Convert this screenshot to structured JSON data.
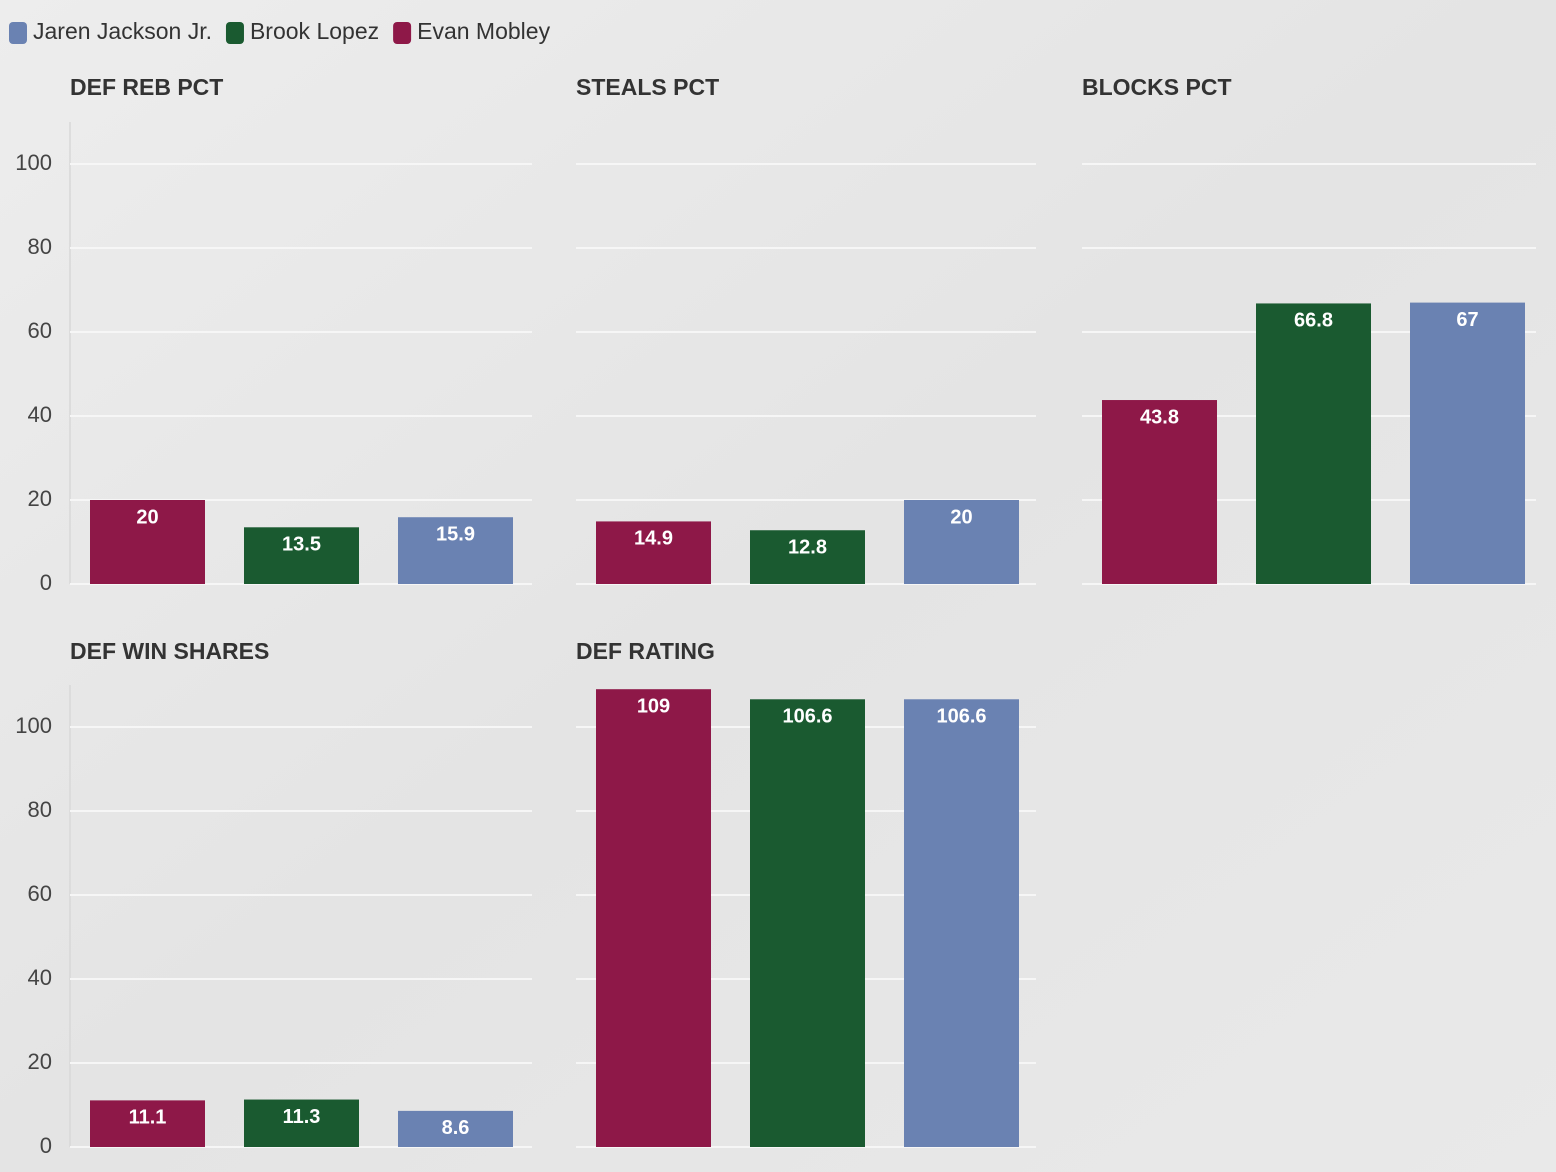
{
  "chart_data": [
    {
      "type": "bar",
      "title": "DEF REB PCT",
      "ylim": [
        0,
        110
      ],
      "yticks": [
        0,
        20,
        40,
        60,
        80,
        100
      ],
      "ytick_labels": true,
      "grid": true,
      "series": [
        {
          "name": "Evan Mobley",
          "color": "#8e1848",
          "values": [
            20
          ]
        },
        {
          "name": "Brook Lopez",
          "color": "#1a5a30",
          "values": [
            13.5
          ]
        },
        {
          "name": "Jaren Jackson Jr.",
          "color": "#6a82b2",
          "values": [
            15.9
          ]
        }
      ]
    },
    {
      "type": "bar",
      "title": "STEALS PCT",
      "ylim": [
        0,
        110
      ],
      "yticks": [
        0,
        20,
        40,
        60,
        80,
        100
      ],
      "ytick_labels": false,
      "grid": true,
      "series": [
        {
          "name": "Evan Mobley",
          "color": "#8e1848",
          "values": [
            14.9
          ]
        },
        {
          "name": "Brook Lopez",
          "color": "#1a5a30",
          "values": [
            12.8
          ]
        },
        {
          "name": "Jaren Jackson Jr.",
          "color": "#6a82b2",
          "values": [
            20
          ]
        }
      ]
    },
    {
      "type": "bar",
      "title": "BLOCKS PCT",
      "ylim": [
        0,
        110
      ],
      "yticks": [
        0,
        20,
        40,
        60,
        80,
        100
      ],
      "ytick_labels": false,
      "grid": true,
      "series": [
        {
          "name": "Evan Mobley",
          "color": "#8e1848",
          "values": [
            43.8
          ]
        },
        {
          "name": "Brook Lopez",
          "color": "#1a5a30",
          "values": [
            66.8
          ]
        },
        {
          "name": "Jaren Jackson Jr.",
          "color": "#6a82b2",
          "values": [
            67
          ]
        }
      ]
    },
    {
      "type": "bar",
      "title": "DEF WIN SHARES",
      "ylim": [
        0,
        110
      ],
      "yticks": [
        0,
        20,
        40,
        60,
        80,
        100
      ],
      "ytick_labels": true,
      "grid": true,
      "series": [
        {
          "name": "Evan Mobley",
          "color": "#8e1848",
          "values": [
            11.1
          ]
        },
        {
          "name": "Brook Lopez",
          "color": "#1a5a30",
          "values": [
            11.3
          ]
        },
        {
          "name": "Jaren Jackson Jr.",
          "color": "#6a82b2",
          "values": [
            8.6
          ]
        }
      ]
    },
    {
      "type": "bar",
      "title": "DEF RATING",
      "ylim": [
        0,
        110
      ],
      "yticks": [
        0,
        20,
        40,
        60,
        80,
        100
      ],
      "ytick_labels": false,
      "grid": true,
      "series": [
        {
          "name": "Evan Mobley",
          "color": "#8e1848",
          "values": [
            109
          ]
        },
        {
          "name": "Brook Lopez",
          "color": "#1a5a30",
          "values": [
            106.6
          ]
        },
        {
          "name": "Jaren Jackson Jr.",
          "color": "#6a82b2",
          "values": [
            106.6
          ]
        }
      ]
    }
  ]
}
